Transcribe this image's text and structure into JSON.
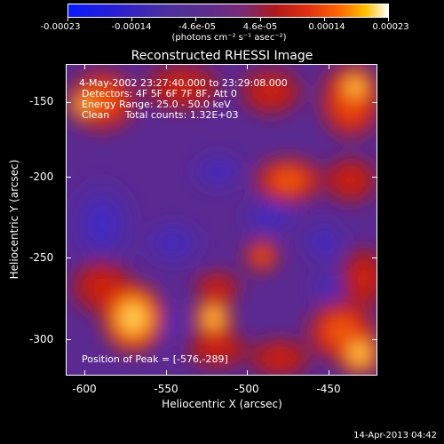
{
  "colorbar": {
    "ticks": [
      "-0.00023",
      "-0.00014",
      "-4.6e-05",
      "4.6e-05",
      "0.00014",
      "0.00023"
    ],
    "unit": "(photons cm⁻² s⁻¹ asec⁻²)"
  },
  "title": "Reconstructed RHESSI Image",
  "annotations": {
    "line1": "4-May-2002 23:27:40.000 to 23:29:08.000",
    "line2": "Detectors: 4F 5F 6F 7F 8F, Att 0",
    "line3": "Energy Range: 25.0 - 50.0 keV",
    "line4": "Clean     Total counts: 1.32E+03",
    "peak": "Position of Peak = [-576,-289]"
  },
  "axes": {
    "xlabel": "Heliocentric X (arcsec)",
    "ylabel": "Heliocentric Y (arcsec)",
    "xticks": [
      "-600",
      "-550",
      "-500",
      "-450"
    ],
    "yticks": [
      "-150",
      "-200",
      "-250",
      "-300"
    ]
  },
  "footer": {
    "timestamp": "14-Apr-2013 04:42"
  },
  "colors": {
    "background": "#000000",
    "low": "#3a1fa0",
    "mid": "#6a2a8a",
    "high": "#e02a10",
    "peak": "#ffe060"
  }
}
